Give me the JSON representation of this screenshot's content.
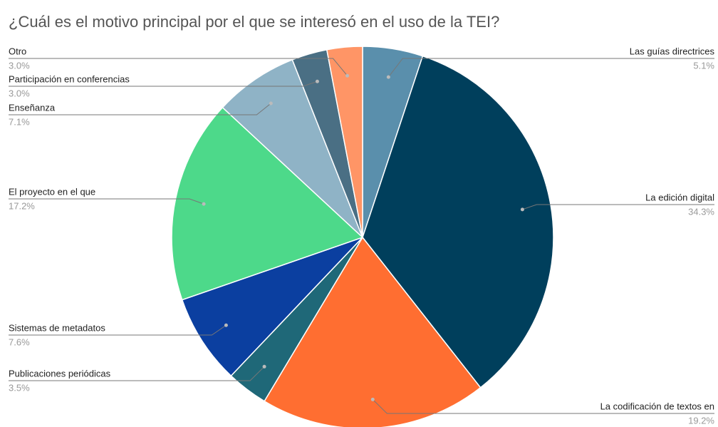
{
  "chart_data": {
    "type": "pie",
    "title": "¿Cuál es el motivo principal por el que se interesó en el uso de la TEI?",
    "categories": [
      "Las guías directrices",
      "La edición digital",
      "La codificación de textos en",
      "Publicaciones periódicas",
      "Sistemas de metadatos",
      "El proyecto en el que",
      "Enseñanza",
      "Participación en conferencias",
      "Otro"
    ],
    "values": [
      5.1,
      34.3,
      19.2,
      3.5,
      7.6,
      17.2,
      7.1,
      3.0,
      3.0
    ],
    "value_labels": [
      "5.1%",
      "34.3%",
      "19.2%",
      "3.5%",
      "7.6%",
      "17.2%",
      "7.1%",
      "3.0%",
      "3.0%"
    ],
    "colors": [
      "#5a8fac",
      "#003f5c",
      "#ff6e31",
      "#1f6878",
      "#0b3fa0",
      "#4dd98a",
      "#8fb3c6",
      "#4a6f84",
      "#ff9566"
    ]
  }
}
